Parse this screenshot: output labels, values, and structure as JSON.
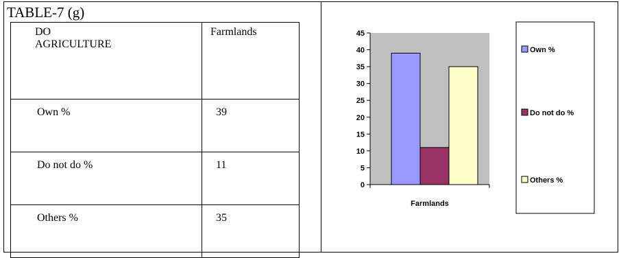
{
  "table": {
    "title": "TABLE-7 (g)",
    "header": {
      "col1_line1": "DO",
      "col1_line2": "AGRICULTURE",
      "col2": "Farmlands"
    },
    "rows": [
      {
        "label": "Own  %",
        "value": "39"
      },
      {
        "label": "Do not do %",
        "value": "11"
      },
      {
        "label": "Others %",
        "value": "35"
      }
    ]
  },
  "chart_data": {
    "type": "bar",
    "categories": [
      "Farmlands"
    ],
    "series": [
      {
        "name": "Own  %",
        "values": [
          39
        ],
        "color": "#9999ff"
      },
      {
        "name": "Do not do %",
        "values": [
          11
        ],
        "color": "#993366"
      },
      {
        "name": "Others %",
        "values": [
          35
        ],
        "color": "#ffffcc"
      }
    ],
    "ylim": [
      0,
      45
    ],
    "yticks": [
      0,
      5,
      10,
      15,
      20,
      25,
      30,
      35,
      40,
      45
    ],
    "plot_background": "#c0c0c0",
    "legend_position": "right",
    "grid": false
  }
}
